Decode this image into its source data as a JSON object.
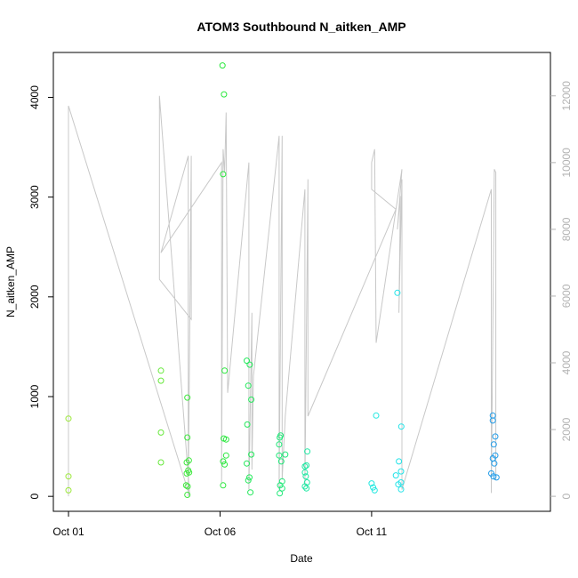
{
  "chart_data": {
    "type": "scatter",
    "title": "ATOM3 Southbound N_aitken_AMP",
    "xlabel": "Date",
    "ylabel": "N_aitken_AMP",
    "xlim": [
      -0.5,
      15.9
    ],
    "ylim": [
      -150,
      4450
    ],
    "y2lim": [
      -450,
      13300
    ],
    "x_ticks": [
      {
        "value": 0,
        "label": "Oct 01"
      },
      {
        "value": 5,
        "label": "Oct 06"
      },
      {
        "value": 10,
        "label": "Oct 11"
      }
    ],
    "y_ticks": [
      {
        "value": 0,
        "label": "0"
      },
      {
        "value": 1000,
        "label": "1000"
      },
      {
        "value": 2000,
        "label": "2000"
      },
      {
        "value": 3000,
        "label": "3000"
      },
      {
        "value": 4000,
        "label": "4000"
      }
    ],
    "y2_ticks": [
      {
        "value": 0,
        "label": "0"
      },
      {
        "value": 2000,
        "label": "2000"
      },
      {
        "value": 4000,
        "label": "4000"
      },
      {
        "value": 6000,
        "label": "6000"
      },
      {
        "value": 8000,
        "label": "8000"
      },
      {
        "value": 10000,
        "label": "10000"
      },
      {
        "value": 12000,
        "label": "12000"
      }
    ],
    "line_color": "#c8c8c8",
    "points": [
      {
        "x": 0.0,
        "y": 780,
        "color": "#9be838"
      },
      {
        "x": 0.0,
        "y": 200,
        "color": "#9be838"
      },
      {
        "x": 0.0,
        "y": 60,
        "color": "#9be838"
      },
      {
        "x": 3.05,
        "y": 1260,
        "color": "#66e83a"
      },
      {
        "x": 3.05,
        "y": 1160,
        "color": "#66e83a"
      },
      {
        "x": 3.05,
        "y": 640,
        "color": "#66e83a"
      },
      {
        "x": 3.05,
        "y": 340,
        "color": "#66e83a"
      },
      {
        "x": 3.92,
        "y": 990,
        "color": "#3ee83d"
      },
      {
        "x": 3.92,
        "y": 590,
        "color": "#3ee83d"
      },
      {
        "x": 3.9,
        "y": 340,
        "color": "#3ee83d"
      },
      {
        "x": 3.97,
        "y": 360,
        "color": "#3ee83d"
      },
      {
        "x": 3.95,
        "y": 260,
        "color": "#3ee83d"
      },
      {
        "x": 3.9,
        "y": 230,
        "color": "#3ee83d"
      },
      {
        "x": 3.98,
        "y": 240,
        "color": "#3ee83d"
      },
      {
        "x": 3.93,
        "y": 100,
        "color": "#3ee83d"
      },
      {
        "x": 3.88,
        "y": 110,
        "color": "#3ee83d"
      },
      {
        "x": 3.92,
        "y": 15,
        "color": "#3ee83d"
      },
      {
        "x": 5.08,
        "y": 4320,
        "color": "#2ae83d"
      },
      {
        "x": 5.13,
        "y": 4030,
        "color": "#2ae83d"
      },
      {
        "x": 5.1,
        "y": 3230,
        "color": "#2ae83d"
      },
      {
        "x": 5.15,
        "y": 1260,
        "color": "#2ae83d"
      },
      {
        "x": 5.12,
        "y": 580,
        "color": "#2ae83d"
      },
      {
        "x": 5.2,
        "y": 570,
        "color": "#2ae83d"
      },
      {
        "x": 5.2,
        "y": 410,
        "color": "#2ae83d"
      },
      {
        "x": 5.1,
        "y": 350,
        "color": "#2ae83d"
      },
      {
        "x": 5.15,
        "y": 320,
        "color": "#2ae83d"
      },
      {
        "x": 5.1,
        "y": 110,
        "color": "#2ae83d"
      },
      {
        "x": 5.88,
        "y": 1360,
        "color": "#22e85a"
      },
      {
        "x": 5.98,
        "y": 1320,
        "color": "#22e85a"
      },
      {
        "x": 5.93,
        "y": 1110,
        "color": "#22e85a"
      },
      {
        "x": 6.03,
        "y": 970,
        "color": "#22e85a"
      },
      {
        "x": 5.9,
        "y": 720,
        "color": "#22e85a"
      },
      {
        "x": 6.03,
        "y": 420,
        "color": "#22e85a"
      },
      {
        "x": 5.88,
        "y": 330,
        "color": "#22e85a"
      },
      {
        "x": 5.97,
        "y": 190,
        "color": "#22e85a"
      },
      {
        "x": 5.93,
        "y": 160,
        "color": "#22e85a"
      },
      {
        "x": 6.0,
        "y": 40,
        "color": "#22e85a"
      },
      {
        "x": 7.0,
        "y": 610,
        "color": "#1fe878"
      },
      {
        "x": 6.97,
        "y": 590,
        "color": "#1fe878"
      },
      {
        "x": 6.95,
        "y": 410,
        "color": "#1fe878"
      },
      {
        "x": 7.15,
        "y": 420,
        "color": "#1fe878"
      },
      {
        "x": 7.02,
        "y": 350,
        "color": "#1fe878"
      },
      {
        "x": 6.95,
        "y": 520,
        "color": "#1fe878"
      },
      {
        "x": 7.05,
        "y": 150,
        "color": "#1fe878"
      },
      {
        "x": 6.98,
        "y": 110,
        "color": "#1fe878"
      },
      {
        "x": 7.05,
        "y": 80,
        "color": "#1fe878"
      },
      {
        "x": 6.97,
        "y": 30,
        "color": "#1fe878"
      },
      {
        "x": 7.88,
        "y": 450,
        "color": "#20e8a3"
      },
      {
        "x": 7.85,
        "y": 310,
        "color": "#20e8a3"
      },
      {
        "x": 7.8,
        "y": 300,
        "color": "#20e8a3"
      },
      {
        "x": 7.8,
        "y": 240,
        "color": "#20e8a3"
      },
      {
        "x": 7.83,
        "y": 200,
        "color": "#20e8a3"
      },
      {
        "x": 7.87,
        "y": 140,
        "color": "#20e8a3"
      },
      {
        "x": 7.8,
        "y": 100,
        "color": "#20e8a3"
      },
      {
        "x": 7.85,
        "y": 80,
        "color": "#20e8a3"
      },
      {
        "x": 10.15,
        "y": 810,
        "color": "#22e8e0"
      },
      {
        "x": 10.0,
        "y": 130,
        "color": "#22e8e0"
      },
      {
        "x": 10.05,
        "y": 90,
        "color": "#22e8e0"
      },
      {
        "x": 10.1,
        "y": 60,
        "color": "#22e8e0"
      },
      {
        "x": 10.85,
        "y": 2040,
        "color": "#22e3e8"
      },
      {
        "x": 10.98,
        "y": 700,
        "color": "#22e3e8"
      },
      {
        "x": 10.9,
        "y": 350,
        "color": "#22e3e8"
      },
      {
        "x": 10.97,
        "y": 250,
        "color": "#22e3e8"
      },
      {
        "x": 10.8,
        "y": 210,
        "color": "#22e3e8"
      },
      {
        "x": 10.97,
        "y": 140,
        "color": "#22e3e8"
      },
      {
        "x": 10.88,
        "y": 120,
        "color": "#22e3e8"
      },
      {
        "x": 10.97,
        "y": 70,
        "color": "#22e3e8"
      },
      {
        "x": 14.0,
        "y": 810,
        "color": "#1f9be8"
      },
      {
        "x": 14.0,
        "y": 760,
        "color": "#1f9be8"
      },
      {
        "x": 14.08,
        "y": 600,
        "color": "#1f9be8"
      },
      {
        "x": 14.03,
        "y": 520,
        "color": "#1f9be8"
      },
      {
        "x": 14.08,
        "y": 410,
        "color": "#1f9be8"
      },
      {
        "x": 14.0,
        "y": 380,
        "color": "#1f9be8"
      },
      {
        "x": 14.05,
        "y": 330,
        "color": "#1f9be8"
      },
      {
        "x": 13.95,
        "y": 230,
        "color": "#1f9be8"
      },
      {
        "x": 14.02,
        "y": 200,
        "color": "#1f9be8"
      },
      {
        "x": 14.12,
        "y": 190,
        "color": "#1f9be8"
      }
    ],
    "line_y2": [
      [
        0.0,
        0
      ],
      [
        0.0,
        11700
      ],
      [
        4.0,
        0
      ],
      [
        3.0,
        12000
      ],
      [
        3.0,
        6500
      ],
      [
        4.05,
        5300
      ],
      [
        4.05,
        10200
      ],
      [
        3.95,
        0
      ],
      [
        3.95,
        10200
      ],
      [
        3.05,
        7300
      ],
      [
        5.05,
        10000
      ],
      [
        5.05,
        400
      ],
      [
        5.1,
        10400
      ],
      [
        5.15,
        9700
      ],
      [
        5.2,
        11500
      ],
      [
        5.25,
        3100
      ],
      [
        5.95,
        10000
      ],
      [
        5.95,
        200
      ],
      [
        6.05,
        5500
      ],
      [
        6.05,
        800
      ],
      [
        6.1,
        3600
      ],
      [
        6.95,
        10800
      ],
      [
        6.95,
        200
      ],
      [
        7.05,
        10800
      ],
      [
        7.05,
        500
      ],
      [
        7.15,
        2400
      ],
      [
        7.8,
        9200
      ],
      [
        7.8,
        300
      ],
      [
        7.9,
        9500
      ],
      [
        7.9,
        2400
      ],
      [
        10.8,
        8600
      ],
      [
        10.0,
        9200
      ],
      [
        10.0,
        10000
      ],
      [
        10.1,
        10400
      ],
      [
        10.15,
        4600
      ],
      [
        11.0,
        9800
      ],
      [
        10.85,
        8000
      ],
      [
        10.95,
        9000
      ],
      [
        10.9,
        5500
      ],
      [
        11.0,
        9500
      ],
      [
        11.0,
        200
      ],
      [
        13.95,
        9200
      ],
      [
        13.95,
        100
      ],
      [
        14.05,
        9800
      ],
      [
        14.1,
        9700
      ],
      [
        14.1,
        500
      ]
    ]
  }
}
